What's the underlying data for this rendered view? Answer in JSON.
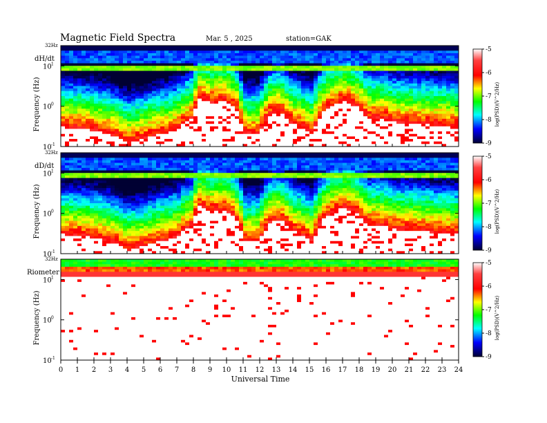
{
  "header": {
    "title": "Magnetic  Field  Spectra",
    "date": "Mar. 5  , 2025",
    "station": "station=GAK"
  },
  "chart_data": {
    "type": "heatmap",
    "xlabel": "Universal Time",
    "x_ticks": [
      "0",
      "1",
      "2",
      "3",
      "4",
      "5",
      "6",
      "7",
      "8",
      "9",
      "10",
      "11",
      "12",
      "13",
      "14",
      "15",
      "16",
      "17",
      "18",
      "19",
      "20",
      "21",
      "22",
      "23",
      "24"
    ],
    "xlim": [
      0,
      24
    ],
    "x_unit": "hours UT",
    "y_scale": "log",
    "colorbar": {
      "ticks": [
        "-5",
        "-6",
        "-7",
        "-8",
        "-9"
      ],
      "range": [
        -9,
        -5
      ],
      "colors": [
        "#ffffff",
        "#ff0000",
        "#ffff00",
        "#00ff00",
        "#00ffff",
        "#0000ff",
        "#000033"
      ]
    },
    "panels": [
      {
        "name": "dH/dt",
        "ylabel": "Frequency  (Hz)",
        "top_label": "32Hz",
        "y_ticks": [
          {
            "base": "10",
            "exp": "1"
          },
          {
            "base": "10",
            "exp": "0"
          },
          {
            "base": "10",
            "exp": "-1"
          }
        ],
        "colorbar_label": "log(PSD)(V^2/Hz)",
        "quiet_boundary_hz": [
          [
            0,
            0.3
          ],
          [
            2,
            0.25
          ],
          [
            3,
            0.2
          ],
          [
            4,
            0.12
          ],
          [
            5,
            0.15
          ],
          [
            6,
            0.2
          ],
          [
            7,
            0.25
          ],
          [
            8,
            0.5
          ],
          [
            8.3,
            1.5
          ],
          [
            9,
            1.2
          ],
          [
            9.8,
            1.4
          ],
          [
            10.5,
            0.9
          ],
          [
            11,
            0.2
          ],
          [
            12,
            0.2
          ],
          [
            12.6,
            0.6
          ],
          [
            13.2,
            0.7
          ],
          [
            13.8,
            0.4
          ],
          [
            15.2,
            0.2
          ],
          [
            16,
            0.8
          ],
          [
            17,
            1.3
          ],
          [
            17.8,
            1.0
          ],
          [
            18.5,
            0.5
          ],
          [
            19.5,
            0.5
          ],
          [
            20,
            0.4
          ],
          [
            24,
            0.3
          ]
        ],
        "band_hz": [
          7.5,
          10
        ]
      },
      {
        "name": "dD/dt",
        "ylabel": "Frequency  (Hz)",
        "top_label": "32Hz",
        "y_ticks": [
          {
            "base": "10",
            "exp": "1"
          },
          {
            "base": "10",
            "exp": "0"
          },
          {
            "base": "10",
            "exp": "-1"
          }
        ],
        "colorbar_label": "log(PSD)(V^2/Hz)",
        "quiet_boundary_hz": [
          [
            0,
            0.3
          ],
          [
            2,
            0.25
          ],
          [
            3,
            0.2
          ],
          [
            4,
            0.12
          ],
          [
            5,
            0.15
          ],
          [
            6,
            0.2
          ],
          [
            7,
            0.25
          ],
          [
            8,
            0.5
          ],
          [
            8.3,
            1.5
          ],
          [
            9,
            1.1
          ],
          [
            9.8,
            1.2
          ],
          [
            10.5,
            0.8
          ],
          [
            11,
            0.2
          ],
          [
            12,
            0.2
          ],
          [
            12.6,
            0.6
          ],
          [
            13.2,
            0.7
          ],
          [
            13.8,
            0.4
          ],
          [
            15.2,
            0.2
          ],
          [
            16,
            0.8
          ],
          [
            17,
            1.4
          ],
          [
            17.8,
            1.0
          ],
          [
            18.5,
            0.5
          ],
          [
            19.5,
            0.5
          ],
          [
            20,
            0.4
          ],
          [
            24,
            0.3
          ]
        ],
        "band_hz": [
          7.5,
          10
        ]
      },
      {
        "name": "Riometer",
        "ylabel": "Frequency  (Hz)",
        "top_label": "32Hz",
        "y_ticks": [
          {
            "base": "10",
            "exp": "1"
          },
          {
            "base": "10",
            "exp": "0"
          },
          {
            "base": "10",
            "exp": "-1"
          }
        ],
        "colorbar_label": "log(PSD)(V^2/Hz)",
        "noise_floor_hz": 12,
        "band_hz": [
          15,
          32
        ]
      }
    ]
  }
}
